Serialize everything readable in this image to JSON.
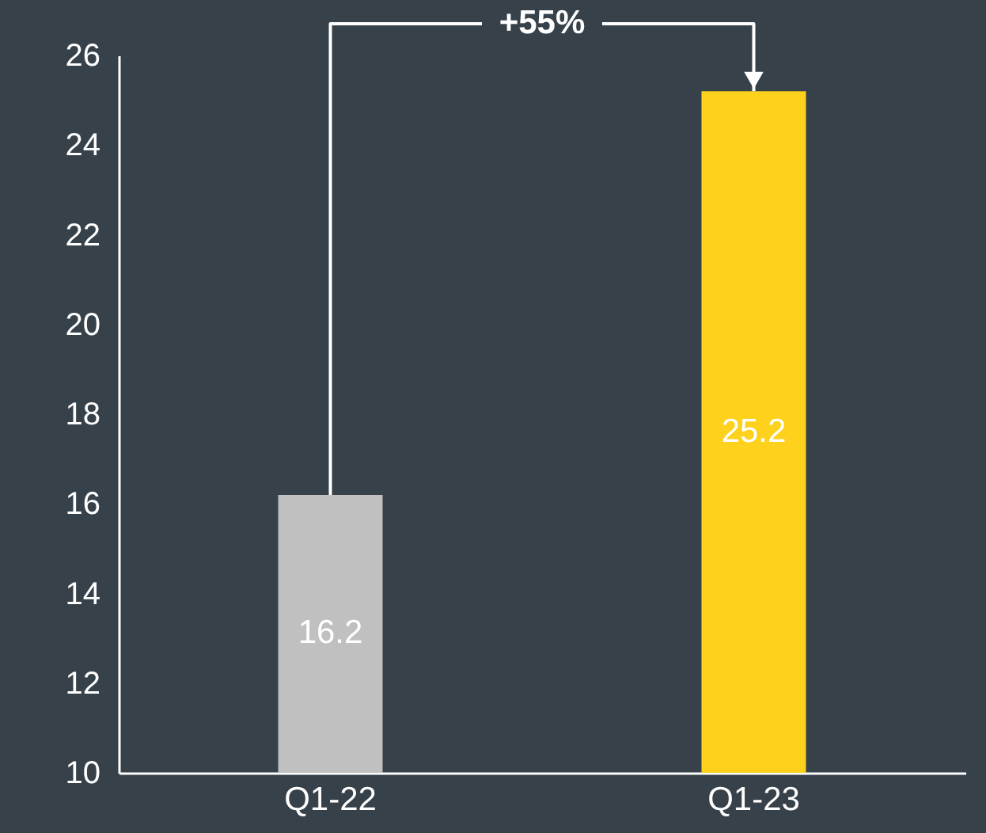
{
  "chart_data": {
    "type": "bar",
    "categories": [
      "Q1-22",
      "Q1-23"
    ],
    "values": [
      16.2,
      25.2
    ],
    "colors": [
      "#c0c0c0",
      "#fdd11c"
    ],
    "ylim": [
      10,
      26
    ],
    "yticks": [
      10,
      12,
      14,
      16,
      18,
      20,
      22,
      24,
      26
    ],
    "data_labels": true,
    "grid": false,
    "annotations": [
      "+55%"
    ]
  }
}
